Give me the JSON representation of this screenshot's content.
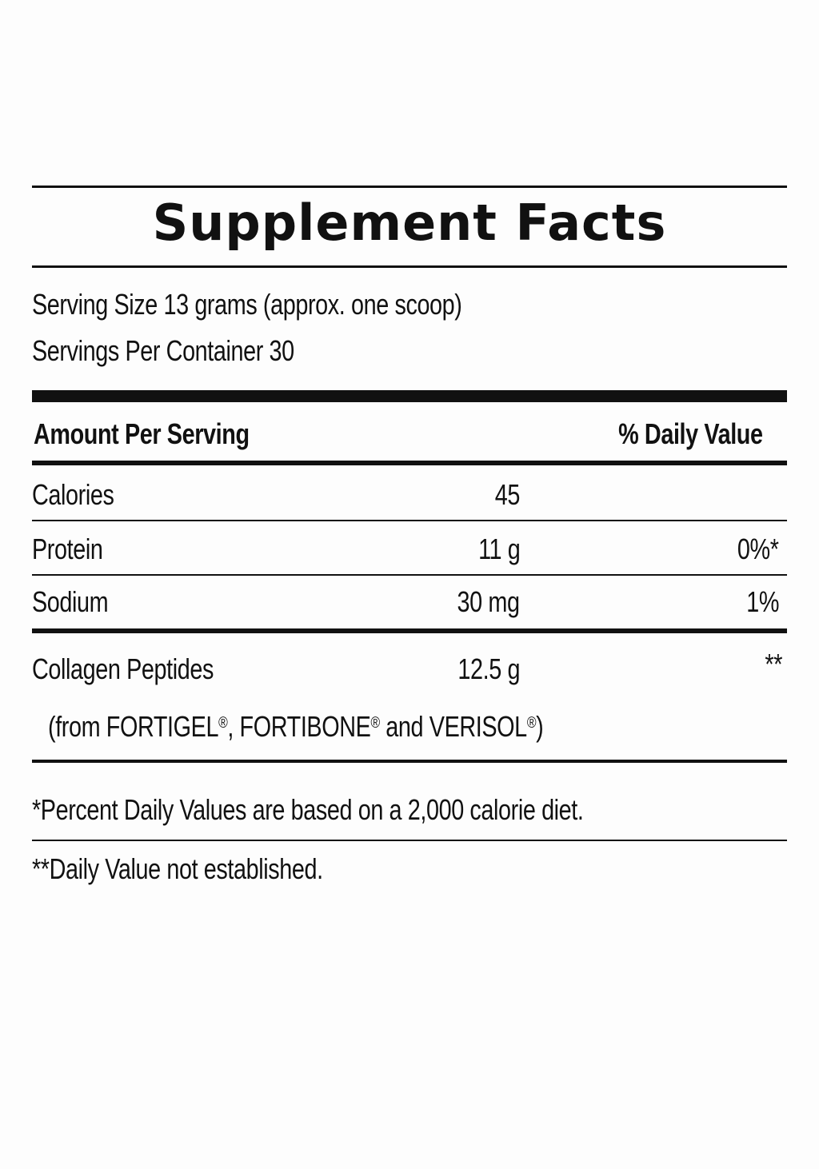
{
  "title": "Supplement Facts",
  "serving_size": "Serving Size 13 grams (approx. one scoop)",
  "servings_per_container": "Servings Per Container 30",
  "header": {
    "amount_per_serving": "Amount Per Serving",
    "daily_value": "% Daily Value"
  },
  "rows": [
    {
      "name": "Calories",
      "amount": "45",
      "dv": ""
    },
    {
      "name": "Protein",
      "amount": "11 g",
      "dv": "0%*"
    },
    {
      "name": "Sodium",
      "amount": "30 mg",
      "dv": "1%"
    },
    {
      "name": "Collagen Peptides",
      "amount": "12.5 g",
      "dv": "**"
    }
  ],
  "collagen_source": {
    "prefix": "(from FORTIGEL",
    "reg1": "®",
    "mid1": ", FORTIBONE",
    "reg2": "®",
    "mid2": " and VERISOL",
    "reg3": "®",
    "suffix": ")"
  },
  "footnotes": {
    "daily_values": "*Percent Daily Values are based on a 2,000 calorie diet.",
    "not_established": "**Daily Value not established."
  }
}
